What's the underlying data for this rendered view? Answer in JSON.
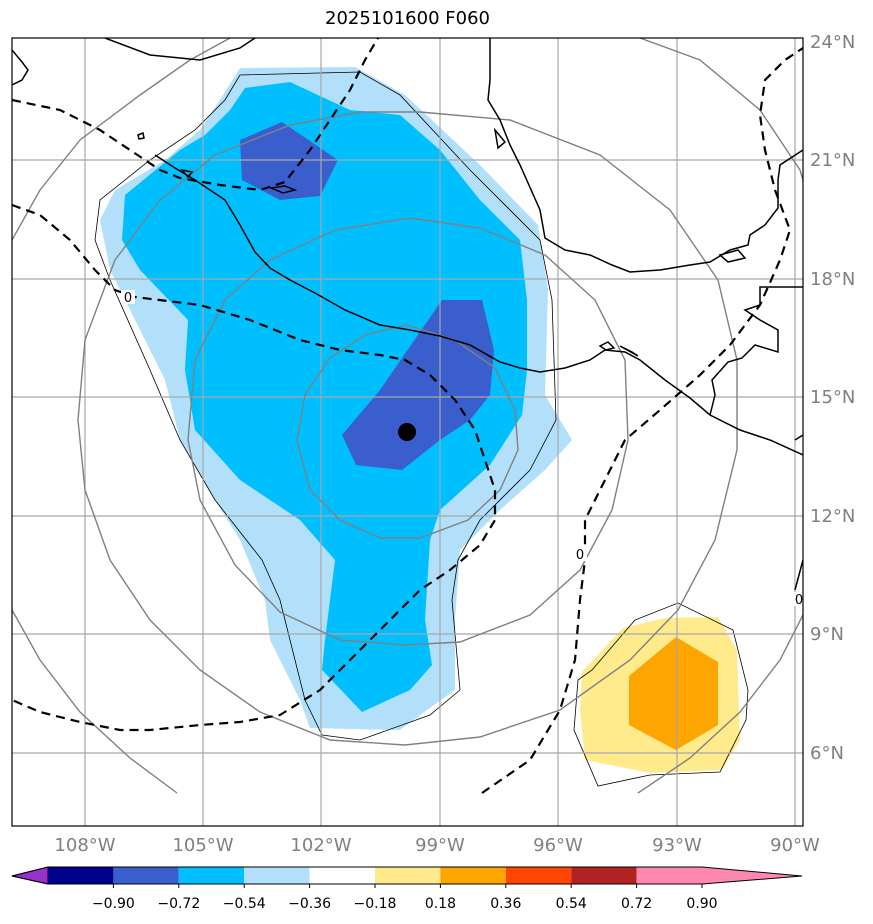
{
  "title": "2025101600 F060",
  "x_ticks": [
    "108°W",
    "105°W",
    "102°W",
    "99°W",
    "96°W",
    "93°W",
    "90°W"
  ],
  "y_ticks": [
    "24°N",
    "21°N",
    "18°N",
    "15°N",
    "12°N",
    "9°N",
    "6°N"
  ],
  "colorbar": {
    "labels": [
      "−0.90",
      "−0.72",
      "−0.54",
      "−0.36",
      "−0.18",
      "0.18",
      "0.36",
      "0.54",
      "0.72",
      "0.90"
    ],
    "colors": [
      "#9932cc",
      "#00008b",
      "#3a5fcd",
      "#00bfff",
      "#b2e0fa",
      "#ffffff",
      "#ffea8c",
      "#ffa500",
      "#ff4500",
      "#b22222",
      "#ff88b0"
    ]
  },
  "fill_colors": {
    "light_blue": "#b2e0fa",
    "deep_sky": "#00bfff",
    "royal_blue": "#3a5fcd",
    "light_yellow": "#ffea8c",
    "orange": "#ffa500"
  },
  "contour_labels": [
    "0",
    "0",
    "0"
  ],
  "center_marker": {
    "lon": -99.8,
    "lat": 14.1
  }
}
